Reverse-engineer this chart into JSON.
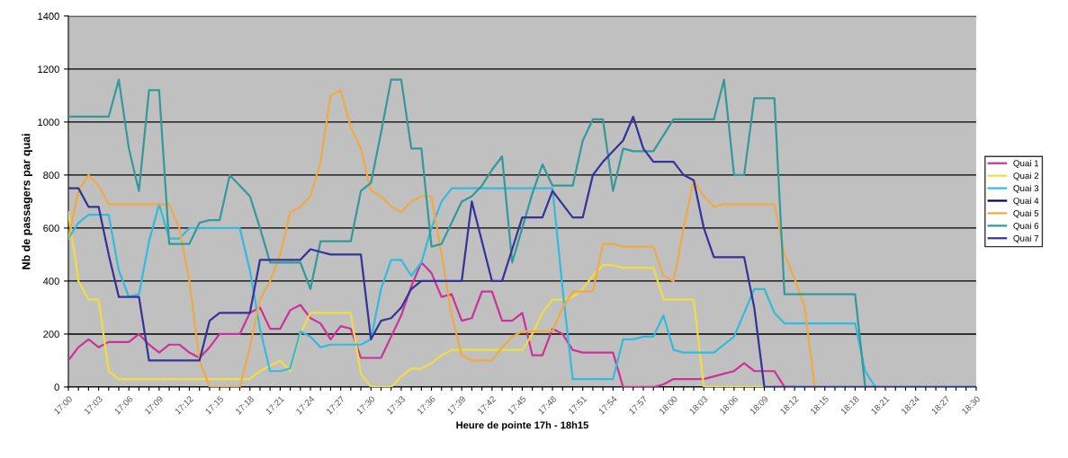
{
  "chart_data": {
    "type": "line",
    "xlabel": "Heure de pointe 17h - 18h15",
    "ylabel": "Nb de passagers par quai",
    "categories": [
      "17:00",
      null,
      null,
      "17:03",
      null,
      null,
      "17:06",
      null,
      null,
      "17:09",
      null,
      null,
      "17:12",
      null,
      null,
      "17:15",
      null,
      null,
      "17:18",
      null,
      null,
      "17:21",
      null,
      null,
      "17:24",
      null,
      null,
      "17:27",
      null,
      null,
      "17:30",
      null,
      null,
      "17:33",
      null,
      null,
      "17:36",
      null,
      null,
      "17:39",
      null,
      null,
      "17:42",
      null,
      null,
      "17:45",
      null,
      null,
      "17:48",
      null,
      null,
      "17:51",
      null,
      null,
      "17:54",
      null,
      null,
      "17:57",
      null,
      null,
      "18:00",
      null,
      null,
      "18:03",
      null,
      null,
      "18:06",
      null,
      null,
      "18:09",
      null,
      null,
      "18:12",
      null,
      null,
      "18:15",
      null,
      null,
      "18:18",
      null,
      null,
      "18:21",
      null,
      null,
      "18:24",
      null,
      null,
      "18:27",
      null,
      null,
      "18:30"
    ],
    "series": [
      {
        "name": "Quai 1",
        "color": "#cc3399",
        "values": [
          100,
          150,
          180,
          150,
          170,
          170,
          170,
          200,
          160,
          130,
          160,
          160,
          130,
          110,
          150,
          200,
          200,
          200,
          280,
          300,
          220,
          220,
          290,
          310,
          260,
          240,
          180,
          230,
          220,
          110,
          110,
          110,
          190,
          270,
          380,
          470,
          430,
          340,
          350,
          250,
          260,
          360,
          360,
          250,
          250,
          280,
          120,
          120,
          220,
          200,
          140,
          130,
          130,
          130,
          130,
          0,
          0,
          0,
          0,
          10,
          30,
          30,
          30,
          30,
          40,
          50,
          60,
          90,
          60,
          60,
          60,
          0,
          0,
          null,
          null,
          null,
          null,
          null,
          null,
          null,
          null,
          null,
          null,
          null,
          null,
          null,
          null,
          null,
          null,
          null,
          null
        ]
      },
      {
        "name": "Quai 2",
        "color": "#eedd44",
        "values": [
          660,
          400,
          330,
          330,
          60,
          30,
          30,
          30,
          30,
          30,
          30,
          30,
          30,
          30,
          30,
          30,
          30,
          30,
          30,
          60,
          80,
          100,
          60,
          200,
          280,
          280,
          280,
          280,
          280,
          50,
          0,
          0,
          0,
          40,
          70,
          70,
          90,
          120,
          140,
          140,
          140,
          140,
          140,
          140,
          140,
          140,
          200,
          280,
          330,
          330,
          340,
          370,
          420,
          460,
          460,
          450,
          450,
          450,
          450,
          330,
          330,
          330,
          330,
          0,
          0,
          0,
          0,
          0,
          0,
          0,
          0,
          null,
          null,
          null,
          null,
          null,
          null,
          null,
          null,
          null,
          null,
          null,
          null,
          null,
          null,
          null,
          null,
          null,
          null,
          null,
          null
        ]
      },
      {
        "name": "Quai 3",
        "color": "#33bbdd",
        "values": [
          560,
          620,
          650,
          650,
          650,
          440,
          340,
          350,
          550,
          690,
          560,
          560,
          600,
          600,
          600,
          600,
          600,
          600,
          440,
          220,
          60,
          60,
          70,
          210,
          190,
          150,
          160,
          160,
          160,
          160,
          180,
          370,
          480,
          480,
          420,
          470,
          600,
          700,
          750,
          750,
          750,
          750,
          750,
          750,
          750,
          750,
          750,
          750,
          750,
          370,
          30,
          30,
          30,
          30,
          30,
          180,
          180,
          190,
          190,
          270,
          140,
          130,
          130,
          130,
          130,
          160,
          190,
          280,
          370,
          370,
          280,
          240,
          240,
          240,
          240,
          240,
          240,
          240,
          240,
          60,
          0,
          0,
          null,
          null,
          null,
          null,
          null,
          null,
          null,
          null,
          null
        ]
      },
      {
        "name": "Quai 4",
        "color": "#000066",
        "values": [
          null,
          null,
          null,
          null,
          null,
          null,
          null,
          null,
          null,
          null,
          null,
          null,
          null,
          null,
          null,
          null,
          null,
          null,
          null,
          null,
          null,
          null,
          null,
          null,
          null,
          null,
          null,
          null,
          null,
          null,
          null,
          null,
          null,
          null,
          null,
          null,
          null,
          null,
          null,
          null,
          null,
          null,
          null,
          null,
          null,
          null,
          null,
          null,
          null,
          null,
          null,
          null,
          null,
          null,
          null,
          null,
          null,
          null,
          null,
          null,
          null,
          null,
          null,
          null,
          null,
          null,
          null,
          null,
          null,
          null,
          null,
          null,
          null,
          null,
          null,
          null,
          null,
          null,
          null,
          null,
          null,
          null,
          null,
          null,
          null,
          null,
          null,
          null,
          null,
          null,
          null
        ]
      },
      {
        "name": "Quai 5",
        "color": "#eeaa44",
        "values": [
          560,
          740,
          800,
          760,
          690,
          690,
          690,
          690,
          690,
          690,
          690,
          600,
          400,
          100,
          0,
          0,
          0,
          0,
          150,
          330,
          400,
          500,
          660,
          680,
          720,
          850,
          1100,
          1120,
          980,
          900,
          740,
          720,
          680,
          660,
          700,
          720,
          720,
          500,
          270,
          120,
          100,
          100,
          100,
          150,
          190,
          210,
          210,
          210,
          210,
          300,
          360,
          360,
          360,
          540,
          540,
          530,
          530,
          530,
          530,
          420,
          400,
          600,
          780,
          720,
          680,
          690,
          690,
          690,
          690,
          690,
          690,
          500,
          410,
          300,
          0,
          0,
          null,
          null,
          null,
          null,
          null,
          null,
          null,
          null,
          null,
          null,
          null,
          null,
          null,
          null,
          null
        ]
      },
      {
        "name": "Quai 6",
        "color": "#339999",
        "values": [
          1020,
          1020,
          1020,
          1020,
          1020,
          1160,
          900,
          740,
          1120,
          1120,
          540,
          540,
          540,
          620,
          630,
          630,
          800,
          760,
          720,
          600,
          470,
          470,
          470,
          470,
          370,
          550,
          550,
          550,
          550,
          740,
          770,
          960,
          1160,
          1160,
          900,
          900,
          530,
          540,
          620,
          700,
          720,
          760,
          820,
          870,
          470,
          600,
          730,
          840,
          760,
          760,
          760,
          930,
          1010,
          1010,
          740,
          900,
          890,
          890,
          890,
          950,
          1010,
          1010,
          1010,
          1010,
          1010,
          1160,
          800,
          800,
          1090,
          1090,
          1090,
          350,
          350,
          350,
          350,
          350,
          350,
          350,
          350,
          0,
          0,
          null,
          null,
          null,
          null,
          null,
          null,
          null,
          null,
          null,
          null
        ]
      },
      {
        "name": "Quai 7",
        "color": "#333399",
        "values": [
          750,
          750,
          680,
          680,
          500,
          340,
          340,
          340,
          100,
          100,
          100,
          100,
          100,
          100,
          250,
          280,
          280,
          280,
          280,
          480,
          480,
          480,
          480,
          480,
          520,
          510,
          500,
          500,
          500,
          500,
          180,
          250,
          260,
          300,
          370,
          400,
          400,
          400,
          400,
          400,
          700,
          550,
          400,
          400,
          520,
          640,
          640,
          640,
          740,
          690,
          640,
          640,
          800,
          850,
          890,
          930,
          1020,
          900,
          850,
          850,
          850,
          800,
          780,
          600,
          490,
          490,
          490,
          490,
          300,
          0,
          0,
          0,
          0,
          0,
          0,
          0,
          0,
          0,
          0,
          0,
          0,
          0,
          0,
          0,
          0,
          0,
          0,
          0,
          0,
          0,
          0
        ]
      }
    ],
    "ylim": [
      0,
      1400
    ],
    "yticks": [
      0,
      200,
      400,
      600,
      800,
      1000,
      1200,
      1400
    ],
    "grid": "y",
    "legend": "right",
    "marker": "none",
    "line_style": "solid"
  }
}
